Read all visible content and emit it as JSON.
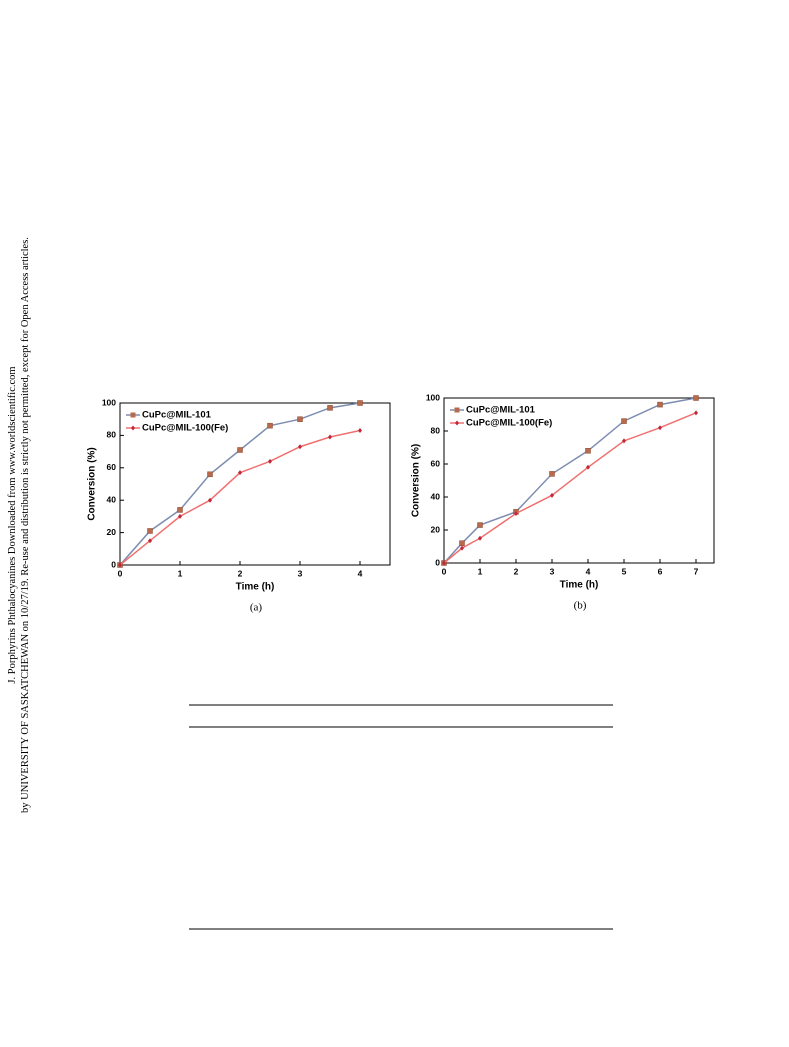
{
  "sidebar": [
    "J. Porphyrins Phthalocyanines Downloaded from www.worldscientific.com",
    "by UNIVERSITY OF SASKATCHEWAN on 10/27/19. Re-use and distribution is strictly not permitted, except for Open Access articles."
  ],
  "chart_data": [
    {
      "type": "line",
      "caption": "(a)",
      "xlabel": "Time (h)",
      "ylabel": "Conversion (%)",
      "x": [
        0,
        0.5,
        1,
        1.5,
        2,
        2.5,
        3,
        3.5,
        4
      ],
      "series": [
        {
          "name": "CuPc@MIL-101",
          "color": "#7d8db0",
          "marker_color": "#b86a4c",
          "marker": "square",
          "values": [
            0,
            21,
            34,
            56,
            71,
            86,
            90,
            97,
            100
          ]
        },
        {
          "name": "CuPc@MIL-100(Fe)",
          "color": "#f07070",
          "marker_color": "#c0283a",
          "marker": "diamond",
          "values": [
            0,
            15,
            30,
            40,
            57,
            64,
            73,
            79,
            83
          ]
        }
      ],
      "xlim": [
        0,
        4.5
      ],
      "xticks": [
        0,
        1,
        2,
        3,
        4
      ],
      "ylim": [
        0,
        100
      ],
      "yticks": [
        0,
        20,
        40,
        60,
        80,
        100
      ],
      "legend": "upper-left"
    },
    {
      "type": "line",
      "caption": "(b)",
      "xlabel": "Time (h)",
      "ylabel": "Conversion (%)",
      "x": [
        0,
        0.5,
        1,
        2,
        3,
        4,
        5,
        6,
        7
      ],
      "series": [
        {
          "name": "CuPc@MIL-101",
          "color": "#7d8db0",
          "marker_color": "#b86a4c",
          "marker": "square",
          "values": [
            0,
            12,
            23,
            31,
            54,
            68,
            86,
            96,
            100
          ]
        },
        {
          "name": "CuPc@MIL-100(Fe)",
          "color": "#f07070",
          "marker_color": "#c0283a",
          "marker": "diamond",
          "values": [
            0,
            9,
            15,
            30,
            41,
            58,
            74,
            82,
            91
          ]
        }
      ],
      "xlim": [
        0,
        7.5
      ],
      "xticks": [
        0,
        1,
        2,
        3,
        4,
        5,
        6,
        7
      ],
      "ylim": [
        0,
        100
      ],
      "yticks": [
        0,
        20,
        40,
        60,
        80,
        100
      ],
      "legend": "upper-left"
    }
  ]
}
